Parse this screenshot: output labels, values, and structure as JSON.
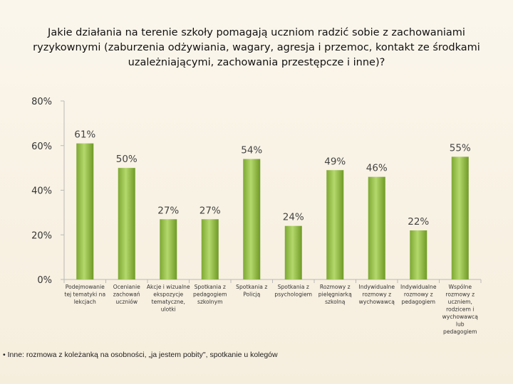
{
  "title": "Jakie działania na terenie szkoły pomagają uczniom radzić sobie z zachowaniami ryzykownymi (zaburzenia odżywiania, wagary, agresja i przemoc, kontakt ze środkami uzależniającymi, zachowania przestępcze i inne)?",
  "footnote": "• Inne: rozmowa z koleżanką na osobności, „ja jestem pobity\", spotkanie u kolegów",
  "chart_data": {
    "type": "bar",
    "title": "Jakie działania na terenie szkoły pomagają uczniom radzić sobie z zachowaniami ryzykownymi (zaburzenia odżywiania, wagary, agresja i przemoc, kontakt ze środkami uzależniającymi, zachowania przestępcze i inne)?",
    "xlabel": "",
    "ylabel": "",
    "ylim": [
      0,
      80
    ],
    "yticks": [
      "0%",
      "20%",
      "40%",
      "60%",
      "80%"
    ],
    "grid": false,
    "legend": "none",
    "categories": [
      [
        "Podejmowanie",
        "tej tematyki na",
        "lekcjach"
      ],
      [
        "Ocenianie",
        "zachowań",
        "uczniów"
      ],
      [
        "Akcje i wizualne",
        "ekspozycje",
        "tematyczne,",
        "ulotki"
      ],
      [
        "Spotkania z",
        "pedagogiem",
        "szkolnym"
      ],
      [
        "Spotkania z",
        "Policją"
      ],
      [
        "Spotkania z",
        "psychologiem"
      ],
      [
        "Rozmowy z",
        "pielęgniarką",
        "szkolną"
      ],
      [
        "Indywidualne",
        "rozmowy z",
        "wychowawcą"
      ],
      [
        "Indywidualne",
        "rozmowy z",
        "pedagogiem"
      ],
      [
        "Wspólne",
        "rozmowy z",
        "uczniem,",
        "rodzicem i",
        "wychowawcą",
        "lub",
        "pedagogiem"
      ]
    ],
    "values": [
      61,
      50,
      27,
      27,
      54,
      24,
      49,
      46,
      22,
      55
    ],
    "data_labels": [
      "61%",
      "50%",
      "27%",
      "27%",
      "54%",
      "24%",
      "49%",
      "46%",
      "22%",
      "55%"
    ],
    "colors": {
      "bar_light": "#b2d66a",
      "bar_dark": "#6f9a26",
      "axis": "#b9b9b9",
      "text": "#333333"
    }
  }
}
